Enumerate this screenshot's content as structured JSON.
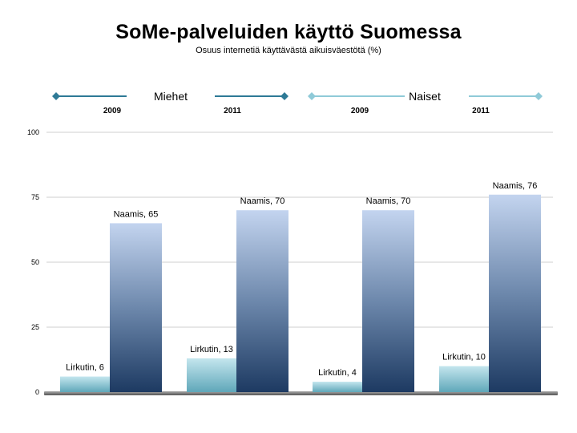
{
  "chart_data": {
    "type": "bar",
    "title": "SoMe-palveluiden käyttö Suomessa",
    "subtitle": "Osuus internetiä käyttävästä aikuisväestötä (%)",
    "xlabel": "",
    "ylabel": "",
    "ylim": [
      0,
      100
    ],
    "yticks": [
      0,
      25,
      50,
      75,
      100
    ],
    "grid": true,
    "groups": [
      {
        "name": "Miehet",
        "years": [
          "2009",
          "2011"
        ],
        "color": "#2e7a96"
      },
      {
        "name": "Naiset",
        "years": [
          "2009",
          "2011"
        ],
        "color": "#8fcad8"
      }
    ],
    "categories": [
      "Miehet 2009",
      "Miehet 2011",
      "Naiset 2009",
      "Naiset 2011"
    ],
    "series": [
      {
        "name": "Lirkutin",
        "values": [
          6,
          13,
          4,
          10
        ],
        "labels": [
          "Lirkutin, 6",
          "Lirkutin, 13",
          "Lirkutin, 4",
          "Lirkutin, 10"
        ]
      },
      {
        "name": "Naamis",
        "values": [
          65,
          70,
          70,
          76
        ],
        "labels": [
          "Naamis, 65",
          "Naamis, 70",
          "Naamis, 70",
          "Naamis, 76"
        ]
      }
    ]
  }
}
